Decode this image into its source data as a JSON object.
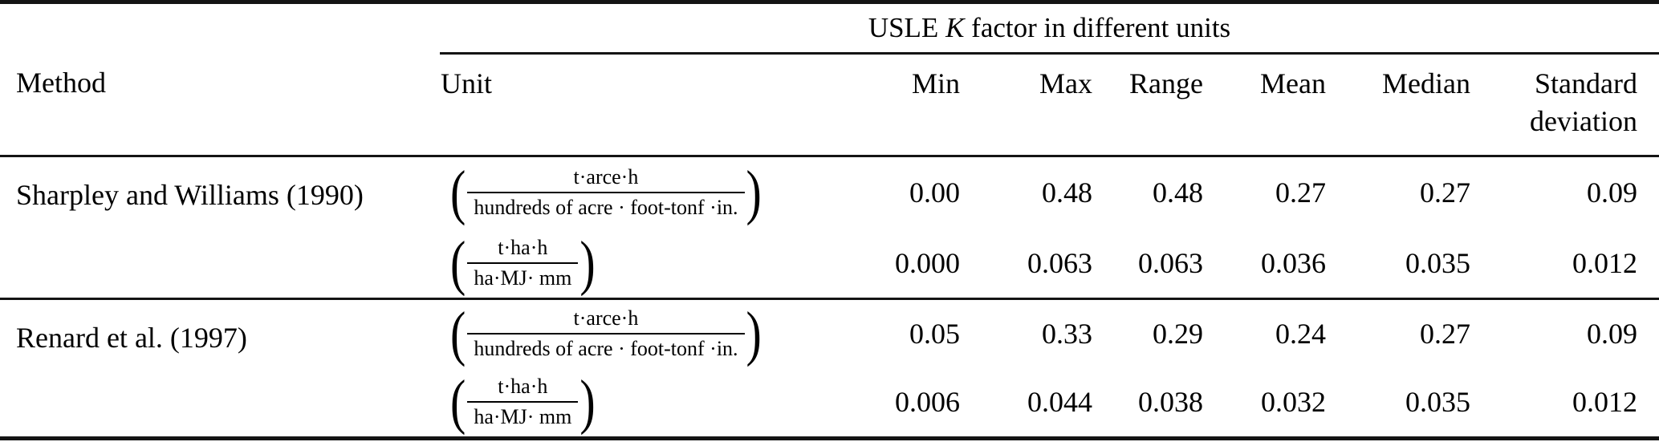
{
  "table": {
    "group_header": {
      "pre": "USLE",
      "italic_symbol": "K",
      "post": "factor in different units"
    },
    "columns": {
      "method": "Method",
      "unit": "Unit",
      "min": "Min",
      "max": "Max",
      "range": "Range",
      "mean": "Mean",
      "median": "Median",
      "std_line1": "Standard",
      "std_line2": "deviation"
    },
    "symbols": {
      "open_paren": "(",
      "close_paren": ")"
    },
    "units": {
      "imperial": {
        "numerator": "t·arce·h",
        "denominator": "hundreds of acre · foot-tonf ·in."
      },
      "si": {
        "numerator": "t·ha·h",
        "denominator": "ha·MJ· mm"
      }
    },
    "rows": [
      {
        "method": "Sharpley and Williams (1990)",
        "min": "0.00",
        "max": "0.48",
        "range": "0.48",
        "mean": "0.27",
        "median": "0.27",
        "std": "0.09"
      },
      {
        "method": "",
        "min": "0.000",
        "max": "0.063",
        "range": "0.063",
        "mean": "0.036",
        "median": "0.035",
        "std": "0.012"
      },
      {
        "method": "Renard et al. (1997)",
        "min": "0.05",
        "max": "0.33",
        "range": "0.29",
        "mean": "0.24",
        "median": "0.27",
        "std": "0.09"
      },
      {
        "method": "",
        "min": "0.006",
        "max": "0.044",
        "range": "0.038",
        "mean": "0.032",
        "median": "0.035",
        "std": "0.012"
      }
    ]
  }
}
